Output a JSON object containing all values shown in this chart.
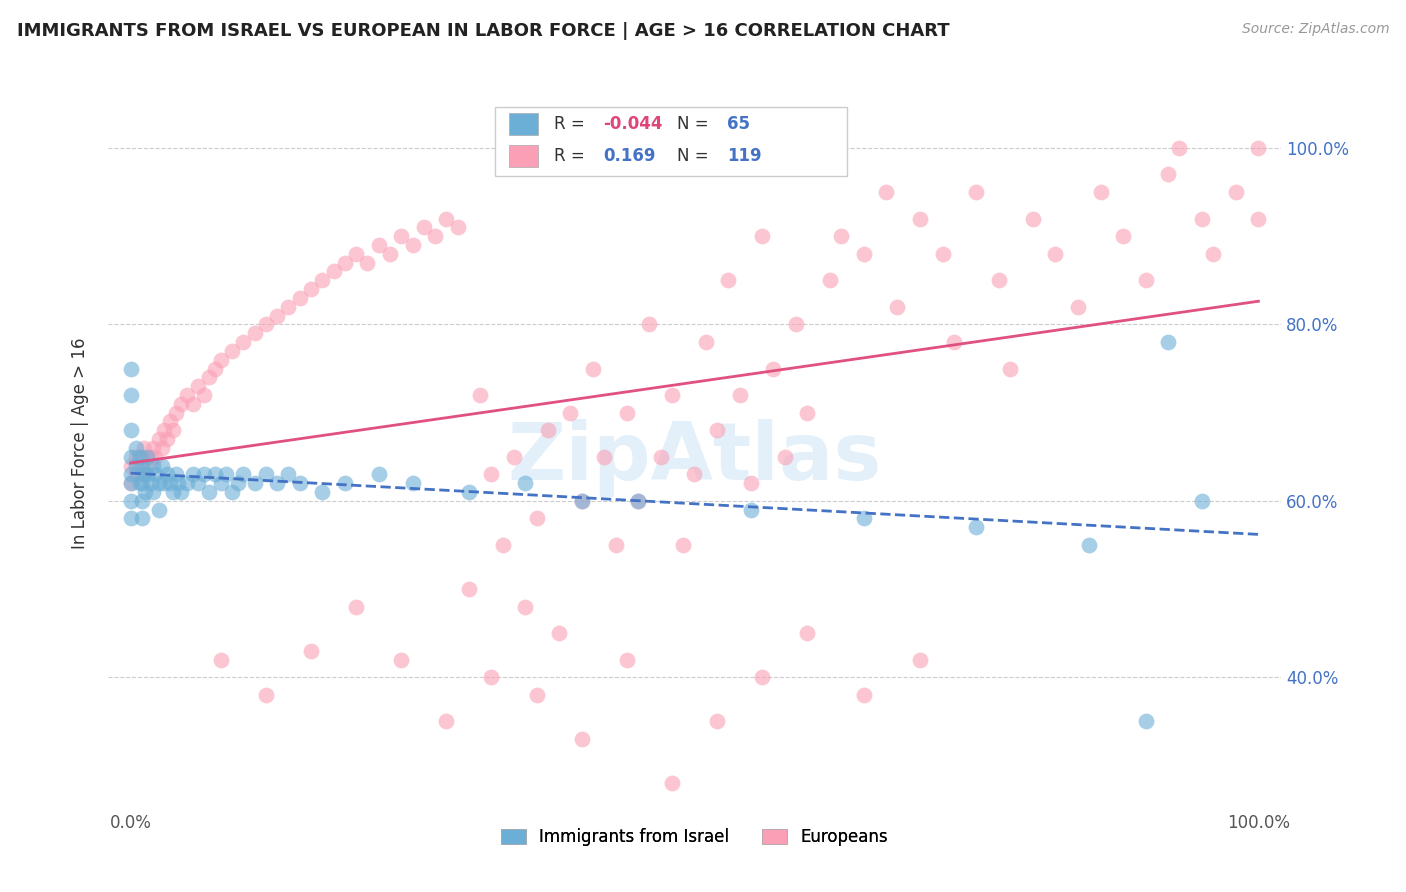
{
  "title": "IMMIGRANTS FROM ISRAEL VS EUROPEAN IN LABOR FORCE | AGE > 16 CORRELATION CHART",
  "source": "Source: ZipAtlas.com",
  "ylabel": "In Labor Force | Age > 16",
  "legend": {
    "israel_label": "Immigrants from Israel",
    "european_label": "Europeans",
    "israel_R": "-0.044",
    "israel_N": "65",
    "european_R": "0.169",
    "european_N": "119"
  },
  "israel_color": "#6baed6",
  "european_color": "#fa9fb5",
  "israel_line_color": "#4472c4",
  "european_line_color": "#e05080",
  "background_color": "#ffffff",
  "grid_color": "#cccccc",
  "title_color": "#222222",
  "watermark": "ZipAtlas",
  "xlim": [
    -0.02,
    1.02
  ],
  "ylim": [
    0.25,
    1.08
  ],
  "yticks": [
    0.4,
    0.6,
    0.8,
    1.0
  ],
  "ytick_labels": [
    "40.0%",
    "60.0%",
    "80.0%",
    "100.0%"
  ],
  "israel_x": [
    0.0,
    0.0,
    0.0,
    0.0,
    0.0,
    0.0,
    0.0,
    0.0,
    0.005,
    0.005,
    0.008,
    0.008,
    0.01,
    0.01,
    0.01,
    0.01,
    0.012,
    0.013,
    0.015,
    0.015,
    0.018,
    0.02,
    0.02,
    0.022,
    0.025,
    0.025,
    0.028,
    0.03,
    0.032,
    0.035,
    0.038,
    0.04,
    0.042,
    0.045,
    0.05,
    0.055,
    0.06,
    0.065,
    0.07,
    0.075,
    0.08,
    0.085,
    0.09,
    0.095,
    0.1,
    0.11,
    0.12,
    0.13,
    0.14,
    0.15,
    0.17,
    0.19,
    0.22,
    0.25,
    0.3,
    0.35,
    0.4,
    0.45,
    0.55,
    0.65,
    0.75,
    0.85,
    0.9,
    0.92,
    0.95
  ],
  "israel_y": [
    0.75,
    0.72,
    0.68,
    0.65,
    0.63,
    0.62,
    0.6,
    0.58,
    0.66,
    0.64,
    0.65,
    0.62,
    0.64,
    0.62,
    0.6,
    0.58,
    0.63,
    0.61,
    0.65,
    0.63,
    0.62,
    0.64,
    0.61,
    0.63,
    0.62,
    0.59,
    0.64,
    0.62,
    0.63,
    0.62,
    0.61,
    0.63,
    0.62,
    0.61,
    0.62,
    0.63,
    0.62,
    0.63,
    0.61,
    0.63,
    0.62,
    0.63,
    0.61,
    0.62,
    0.63,
    0.62,
    0.63,
    0.62,
    0.63,
    0.62,
    0.61,
    0.62,
    0.63,
    0.62,
    0.61,
    0.62,
    0.6,
    0.6,
    0.59,
    0.58,
    0.57,
    0.55,
    0.35,
    0.78,
    0.6
  ],
  "european_x": [
    0.0,
    0.0,
    0.005,
    0.005,
    0.008,
    0.01,
    0.01,
    0.012,
    0.015,
    0.018,
    0.02,
    0.022,
    0.025,
    0.028,
    0.03,
    0.032,
    0.035,
    0.038,
    0.04,
    0.045,
    0.05,
    0.055,
    0.06,
    0.065,
    0.07,
    0.075,
    0.08,
    0.09,
    0.1,
    0.11,
    0.12,
    0.13,
    0.14,
    0.15,
    0.16,
    0.17,
    0.18,
    0.19,
    0.2,
    0.21,
    0.22,
    0.23,
    0.24,
    0.25,
    0.26,
    0.27,
    0.28,
    0.29,
    0.3,
    0.31,
    0.32,
    0.33,
    0.34,
    0.35,
    0.36,
    0.37,
    0.38,
    0.39,
    0.4,
    0.41,
    0.42,
    0.43,
    0.44,
    0.45,
    0.46,
    0.47,
    0.48,
    0.49,
    0.5,
    0.51,
    0.52,
    0.53,
    0.54,
    0.55,
    0.56,
    0.57,
    0.58,
    0.59,
    0.6,
    0.62,
    0.63,
    0.65,
    0.67,
    0.68,
    0.7,
    0.72,
    0.73,
    0.75,
    0.77,
    0.78,
    0.8,
    0.82,
    0.84,
    0.86,
    0.88,
    0.9,
    0.92,
    0.93,
    0.95,
    0.96,
    0.98,
    1.0,
    1.0,
    0.08,
    0.12,
    0.16,
    0.2,
    0.24,
    0.28,
    0.32,
    0.36,
    0.4,
    0.44,
    0.48,
    0.52,
    0.56,
    0.6,
    0.65,
    0.7
  ],
  "european_y": [
    0.64,
    0.62,
    0.65,
    0.63,
    0.64,
    0.65,
    0.63,
    0.66,
    0.64,
    0.65,
    0.66,
    0.65,
    0.67,
    0.66,
    0.68,
    0.67,
    0.69,
    0.68,
    0.7,
    0.71,
    0.72,
    0.71,
    0.73,
    0.72,
    0.74,
    0.75,
    0.76,
    0.77,
    0.78,
    0.79,
    0.8,
    0.81,
    0.82,
    0.83,
    0.84,
    0.85,
    0.86,
    0.87,
    0.88,
    0.87,
    0.89,
    0.88,
    0.9,
    0.89,
    0.91,
    0.9,
    0.92,
    0.91,
    0.5,
    0.72,
    0.63,
    0.55,
    0.65,
    0.48,
    0.58,
    0.68,
    0.45,
    0.7,
    0.6,
    0.75,
    0.65,
    0.55,
    0.7,
    0.6,
    0.8,
    0.65,
    0.72,
    0.55,
    0.63,
    0.78,
    0.68,
    0.85,
    0.72,
    0.62,
    0.9,
    0.75,
    0.65,
    0.8,
    0.7,
    0.85,
    0.9,
    0.88,
    0.95,
    0.82,
    0.92,
    0.88,
    0.78,
    0.95,
    0.85,
    0.75,
    0.92,
    0.88,
    0.82,
    0.95,
    0.9,
    0.85,
    0.97,
    1.0,
    0.92,
    0.88,
    0.95,
    1.0,
    0.92,
    0.42,
    0.38,
    0.43,
    0.48,
    0.42,
    0.35,
    0.4,
    0.38,
    0.33,
    0.42,
    0.28,
    0.35,
    0.4,
    0.45,
    0.38,
    0.42
  ]
}
